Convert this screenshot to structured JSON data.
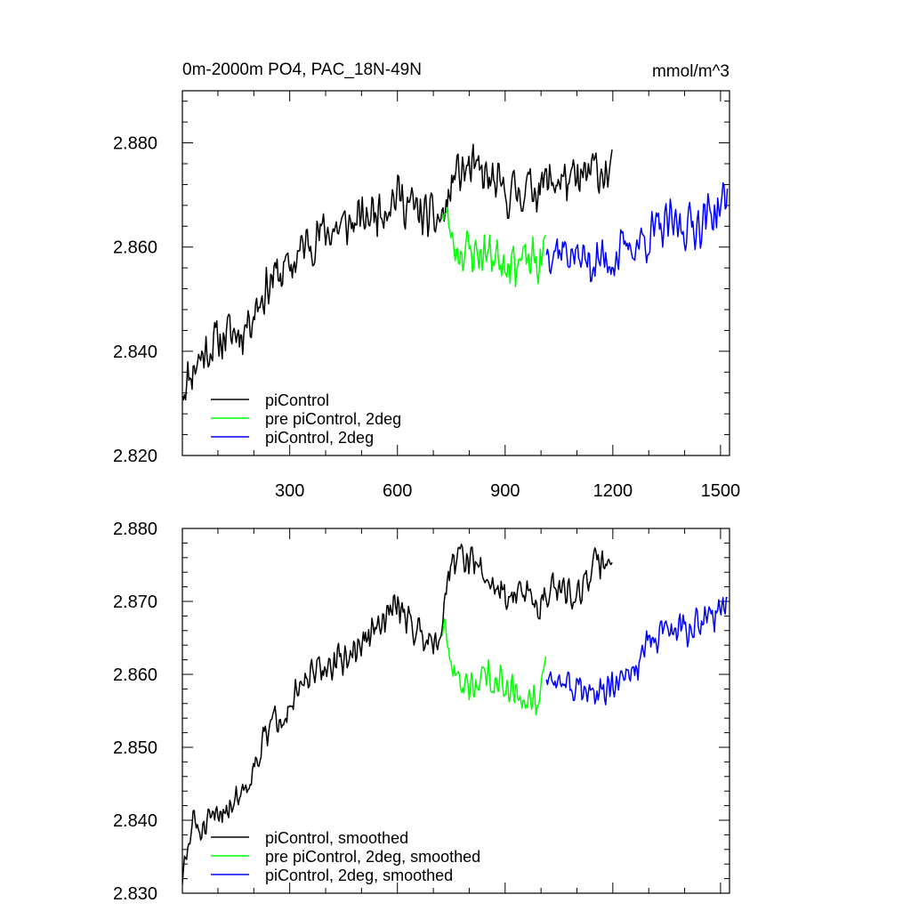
{
  "chart_data": [
    {
      "type": "line",
      "title": "0m-2000m PO4, PAC_18N-49N",
      "units": "mmol/m^3",
      "xlim": [
        1,
        1525
      ],
      "ylim": [
        2.82,
        2.89
      ],
      "xticks": [
        300,
        600,
        900,
        1200,
        1500
      ],
      "xtick_labels": [
        "300",
        "600",
        "900",
        "1200",
        "1500"
      ],
      "yticks": [
        2.82,
        2.84,
        2.86,
        2.88
      ],
      "ytick_labels": [
        "2.820",
        "2.840",
        "2.860",
        "2.880"
      ],
      "legend": {
        "location": "bottom-left",
        "entries": [
          "piControl",
          "pre piControl, 2deg",
          "piControl, 2deg"
        ]
      },
      "series": [
        {
          "name": "piControl",
          "color": "#000000",
          "noise": 0.0055,
          "seed": 11,
          "x": [
            1,
            10,
            40,
            80,
            120,
            170,
            200,
            250,
            300,
            350,
            400,
            450,
            500,
            560,
            600,
            650,
            700,
            730,
            760,
            800,
            850,
            900,
            950,
            1000,
            1050,
            1100,
            1150,
            1200
          ],
          "values": [
            2.833,
            2.834,
            2.838,
            2.841,
            2.843,
            2.844,
            2.848,
            2.854,
            2.856,
            2.861,
            2.863,
            2.864,
            2.865,
            2.868,
            2.87,
            2.867,
            2.865,
            2.866,
            2.874,
            2.875,
            2.873,
            2.87,
            2.871,
            2.872,
            2.873,
            2.872,
            2.875,
            2.874
          ]
        },
        {
          "name": "pre piControl, 2deg",
          "color": "#00ff00",
          "noise": 0.0055,
          "seed": 23,
          "x": [
            725,
            760,
            800,
            850,
            900,
            950,
            1000,
            1015
          ],
          "values": [
            2.868,
            2.86,
            2.859,
            2.859,
            2.858,
            2.857,
            2.857,
            2.861
          ]
        },
        {
          "name": "piControl, 2deg",
          "color": "#0000ff",
          "noise": 0.0055,
          "seed": 37,
          "x": [
            1015,
            1050,
            1100,
            1150,
            1200,
            1250,
            1300,
            1350,
            1400,
            1450,
            1500,
            1520
          ],
          "values": [
            2.86,
            2.86,
            2.858,
            2.857,
            2.858,
            2.86,
            2.862,
            2.864,
            2.864,
            2.865,
            2.868,
            2.869
          ]
        }
      ]
    },
    {
      "type": "line",
      "title": "",
      "xlim": [
        1,
        1525
      ],
      "ylim": [
        2.83,
        2.88
      ],
      "xticks": [
        300,
        600,
        900,
        1200,
        1500
      ],
      "xtick_labels": [],
      "yticks": [
        2.83,
        2.84,
        2.85,
        2.86,
        2.87,
        2.88
      ],
      "ytick_labels": [
        "2.830",
        "2.840",
        "2.850",
        "2.860",
        "2.870",
        "2.880"
      ],
      "legend": {
        "location": "bottom-left",
        "entries": [
          "piControl, smoothed",
          "pre piControl, 2deg, smoothed",
          "piControl, 2deg, smoothed"
        ]
      },
      "series": [
        {
          "name": "piControl, smoothed",
          "color": "#000000",
          "noise": 0.0028,
          "seed": 51,
          "x": [
            1,
            10,
            30,
            60,
            100,
            150,
            180,
            220,
            260,
            300,
            350,
            400,
            450,
            500,
            560,
            600,
            650,
            700,
            720,
            750,
            800,
            850,
            900,
            950,
            1000,
            1050,
            1100,
            1150,
            1200
          ],
          "values": [
            2.832,
            2.834,
            2.84,
            2.838,
            2.841,
            2.843,
            2.845,
            2.85,
            2.854,
            2.856,
            2.859,
            2.861,
            2.862,
            2.864,
            2.867,
            2.87,
            2.866,
            2.865,
            2.866,
            2.876,
            2.876,
            2.873,
            2.871,
            2.871,
            2.87,
            2.872,
            2.871,
            2.875,
            2.876
          ]
        },
        {
          "name": "pre piControl, 2deg, smoothed",
          "color": "#00ff00",
          "noise": 0.0028,
          "seed": 63,
          "x": [
            725,
            760,
            800,
            850,
            900,
            950,
            1000,
            1015
          ],
          "values": [
            2.866,
            2.86,
            2.858,
            2.86,
            2.859,
            2.857,
            2.857,
            2.862
          ]
        },
        {
          "name": "piControl, 2deg, smoothed",
          "color": "#0000ff",
          "noise": 0.0028,
          "seed": 77,
          "x": [
            1015,
            1050,
            1100,
            1150,
            1200,
            1250,
            1300,
            1350,
            1400,
            1450,
            1500,
            1520
          ],
          "values": [
            2.86,
            2.859,
            2.858,
            2.857,
            2.858,
            2.86,
            2.864,
            2.866,
            2.866,
            2.867,
            2.869,
            2.871
          ]
        }
      ]
    }
  ]
}
